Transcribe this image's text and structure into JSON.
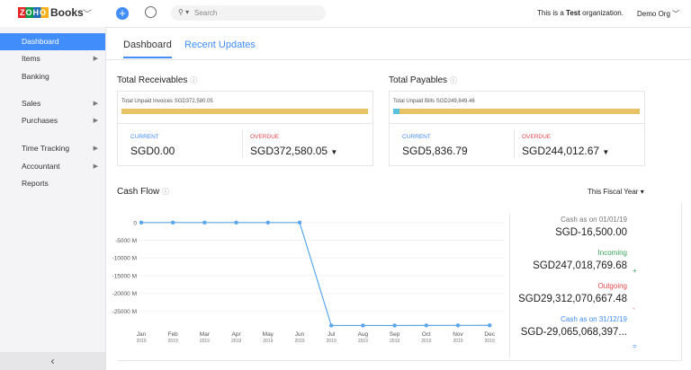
{
  "header": {
    "logo_brand": "ZOHO",
    "logo_product": "Books",
    "search_placeholder": "Search",
    "org_notice_prefix": "This is a",
    "org_notice_bold": "Test",
    "org_notice_suffix": "organization.",
    "org_menu": "Demo Org"
  },
  "sidebar": {
    "items": [
      "Dashboard",
      "Items",
      "Banking",
      "Sales",
      "Purchases",
      "Time Tracking",
      "Accountant",
      "Reports"
    ],
    "active": "Dashboard"
  },
  "tabs": [
    "Dashboard",
    "Recent Updates"
  ],
  "receivables": {
    "title": "Total Receivables",
    "bar_label": "Total Unpaid Invoices SGD372,580.05",
    "current_label": "CURRENT",
    "current_value": "SGD0.00",
    "overdue_label": "OVERDUE",
    "overdue_value": "SGD372,580.05"
  },
  "payables": {
    "title": "Total Payables",
    "bar_label": "Total Unpaid Bills SGD249,849.46",
    "current_label": "CURRENT",
    "current_value": "SGD5,836.79",
    "overdue_label": "OVERDUE",
    "overdue_value": "SGD244,012.67"
  },
  "cash_flow": {
    "title": "Cash Flow",
    "period": "This Fiscal Year",
    "summary": {
      "opening_label": "Cash as on 01/01/19",
      "opening_value": "SGD-16,500.00",
      "incoming_label": "Incoming",
      "incoming_value": "SGD247,018,769.68",
      "incoming_sign": "+",
      "outgoing_label": "Outgoing",
      "outgoing_value": "SGD29,312,070,667.48",
      "outgoing_sign": "-",
      "closing_label": "Cash as on 31/12/19",
      "closing_value": "SGD-29,065,068,397...",
      "closing_sign": "="
    }
  },
  "chart_data": {
    "type": "line",
    "color": "#5aa6ea",
    "grid": true,
    "categories": [
      {
        "month": "Jan",
        "year": "2019"
      },
      {
        "month": "Feb",
        "year": "2019"
      },
      {
        "month": "Mar",
        "year": "2019"
      },
      {
        "month": "Apr",
        "year": "2019"
      },
      {
        "month": "May",
        "year": "2019"
      },
      {
        "month": "Jun",
        "year": "2019"
      },
      {
        "month": "Jul",
        "year": "2019"
      },
      {
        "month": "Aug",
        "year": "2019"
      },
      {
        "month": "Sep",
        "year": "2019"
      },
      {
        "month": "Oct",
        "year": "2019"
      },
      {
        "month": "Nov",
        "year": "2019"
      },
      {
        "month": "Dec",
        "year": "2019"
      }
    ],
    "values": [
      0,
      0,
      0,
      0,
      0,
      0,
      -29100,
      -29100,
      -29100,
      -29080,
      -29060,
      -29050
    ],
    "ylim": [
      -30000,
      3000
    ],
    "yticks": [
      0,
      {
        "value": -5000,
        "label": "-5000 M"
      },
      {
        "value": -10000,
        "label": "-10000 M"
      },
      {
        "value": -15000,
        "label": "-15000 M"
      },
      {
        "value": -20000,
        "label": "-20000 M"
      },
      {
        "value": -25000,
        "label": "-25000 M"
      }
    ]
  }
}
